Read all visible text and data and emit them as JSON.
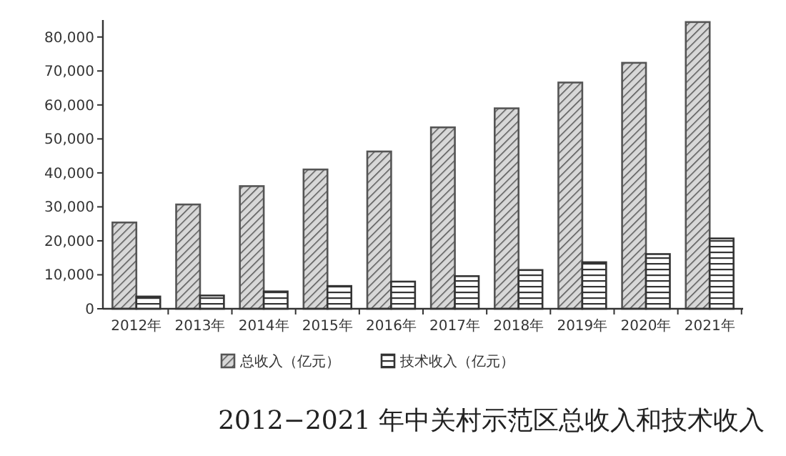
{
  "chart_data": {
    "type": "bar",
    "title": "2012−2021 年中关村示范区总收入和技术收入",
    "categories": [
      "2012年",
      "2013年",
      "2014年",
      "2015年",
      "2016年",
      "2017年",
      "2018年",
      "2019年",
      "2020年",
      "2021年"
    ],
    "series": [
      {
        "name": "总收入（亿元）",
        "color": "#555555",
        "values": [
          25400,
          30700,
          36100,
          41000,
          46300,
          53400,
          59000,
          66600,
          72400,
          84400
        ]
      },
      {
        "name": "技术收入（亿元）",
        "color": "#333333",
        "values": [
          3600,
          3900,
          5100,
          6700,
          8000,
          9600,
          11400,
          13700,
          16100,
          20700
        ]
      }
    ],
    "ylim": [
      0,
      85000
    ],
    "yticks": [
      {
        "value": 0,
        "label": "0"
      },
      {
        "value": 10000,
        "label": "10,000"
      },
      {
        "value": 20000,
        "label": "20,000"
      },
      {
        "value": 30000,
        "label": "30,000"
      },
      {
        "value": 40000,
        "label": "40,000"
      },
      {
        "value": 50000,
        "label": "50,000"
      },
      {
        "value": 60000,
        "label": "60,000"
      },
      {
        "value": 70000,
        "label": "70,000"
      },
      {
        "value": 80000,
        "label": "80,000"
      }
    ],
    "legend": "bottom"
  }
}
